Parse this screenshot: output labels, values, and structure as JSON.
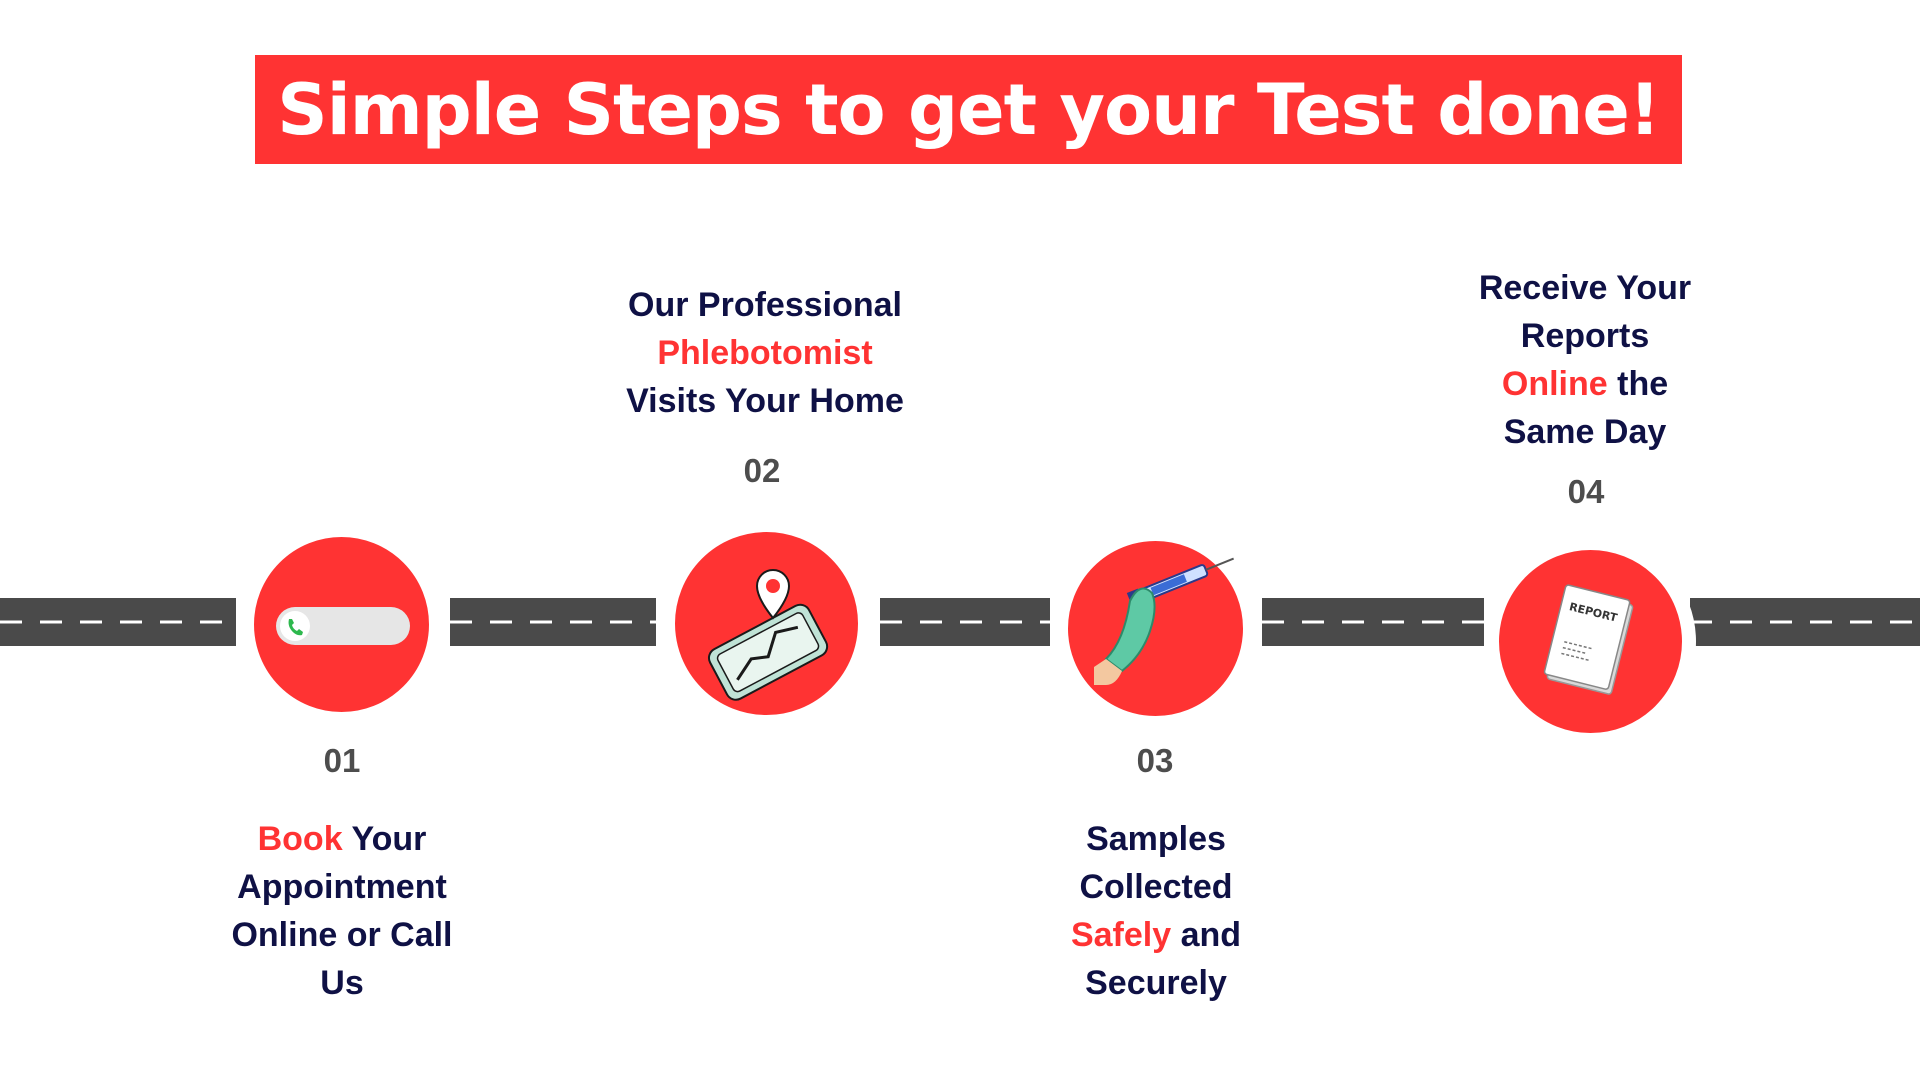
{
  "title": "Simple Steps to get your Test done!",
  "colors": {
    "accent": "#ff3333",
    "text": "#0f1145",
    "number": "#4d4d4d",
    "road": "#4a4a4a"
  },
  "steps": [
    {
      "number": "01",
      "icon": "phone-call-icon",
      "lines": [
        {
          "highlight": "Book",
          "rest": " Your"
        },
        {
          "text": "Appointment"
        },
        {
          "text": "Online or Call"
        },
        {
          "text": "Us"
        }
      ]
    },
    {
      "number": "02",
      "icon": "map-location-pin-icon",
      "lines": [
        {
          "text": "Our Professional"
        },
        {
          "highlight": "Phlebotomist"
        },
        {
          "text": "Visits Your Home"
        }
      ]
    },
    {
      "number": "03",
      "icon": "syringe-hand-icon",
      "lines": [
        {
          "text": "Samples"
        },
        {
          "text": "Collected"
        },
        {
          "highlight": "Safely",
          "rest": " and"
        },
        {
          "text": "Securely"
        }
      ]
    },
    {
      "number": "04",
      "icon": "report-document-icon",
      "report_label": "REPORT",
      "lines": [
        {
          "text": "Receive Your"
        },
        {
          "text": "Reports"
        },
        {
          "highlight": "Online",
          "rest": " the"
        },
        {
          "text": "Same Day"
        }
      ]
    }
  ]
}
